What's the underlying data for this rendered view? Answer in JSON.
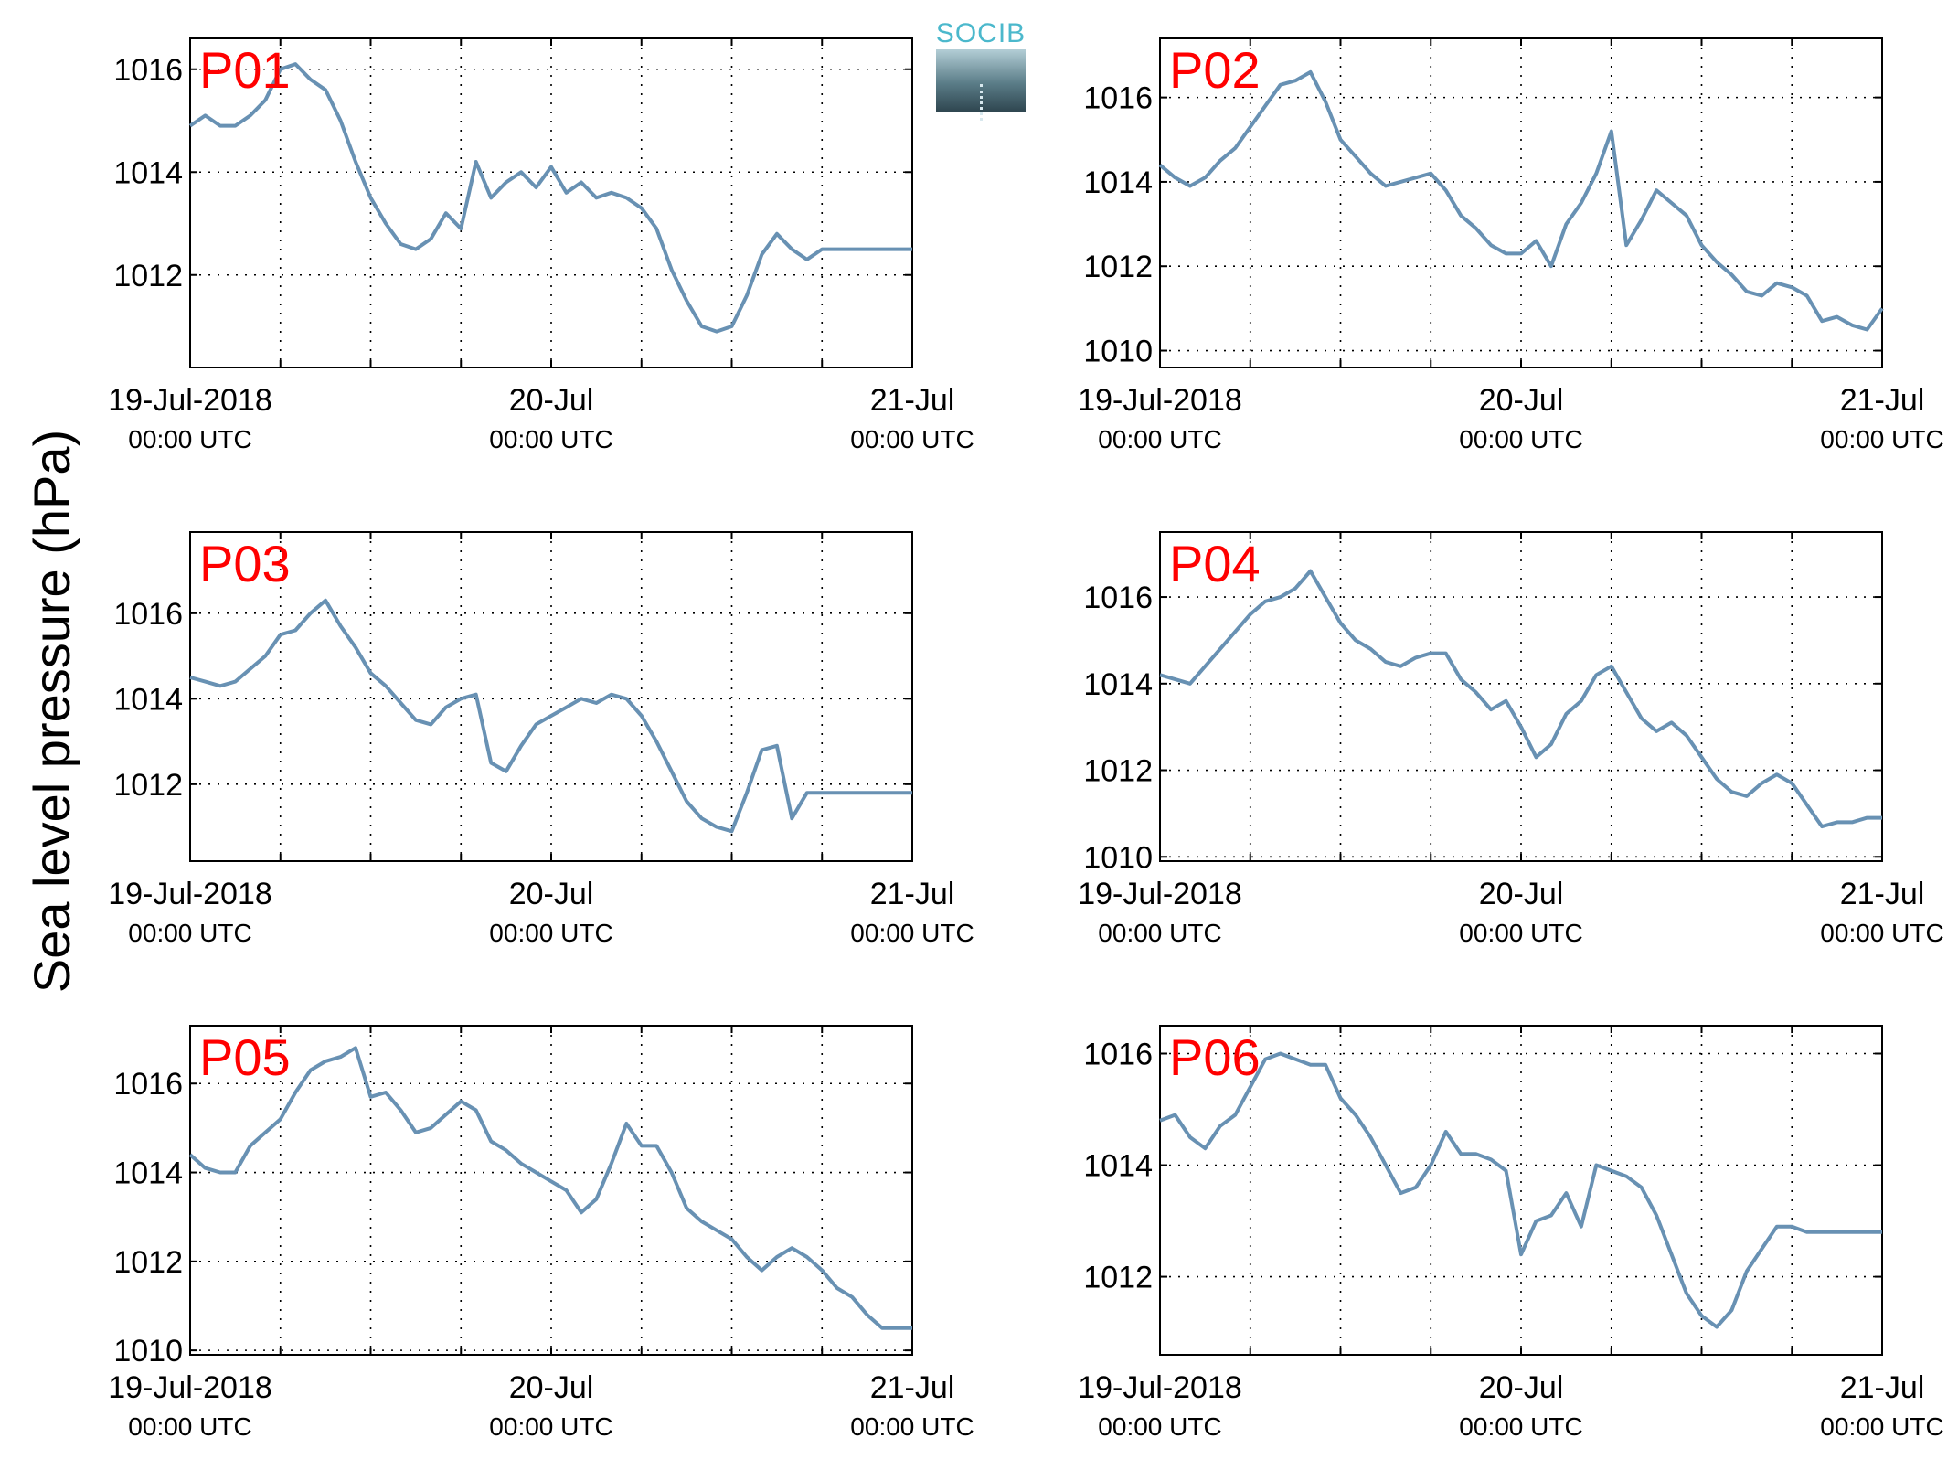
{
  "figure": {
    "ylabel": "Sea level pressure (hPa)",
    "logo_text": "SOCIB",
    "line_color": "#6891b3",
    "station_label_color": "#ff0000",
    "x_tick_labels": [
      {
        "date": "19-Jul-2018",
        "time": "00:00 UTC"
      },
      {
        "date": "20-Jul",
        "time": "00:00 UTC"
      },
      {
        "date": "21-Jul",
        "time": "00:00 UTC"
      }
    ]
  },
  "chart_data": [
    {
      "type": "line",
      "station": "P01",
      "xrange_hours": [
        0,
        48
      ],
      "ylim": [
        1010.2,
        1016.6
      ],
      "yticks": [
        1012,
        1014,
        1016
      ],
      "grid": true,
      "series": [
        {
          "x": [
            0,
            1,
            2,
            3,
            4,
            5,
            6,
            7,
            8,
            9,
            10,
            11,
            12,
            13,
            14,
            15,
            16,
            17,
            18,
            19,
            20,
            21,
            22,
            23,
            24,
            25,
            26,
            27,
            28,
            29,
            30,
            31,
            32,
            33,
            34,
            35,
            36,
            37,
            38,
            39,
            40,
            41,
            42,
            43,
            44,
            45,
            46,
            47,
            48
          ],
          "y": [
            1014.9,
            1015.1,
            1014.9,
            1014.9,
            1015.1,
            1015.4,
            1016.0,
            1016.1,
            1015.8,
            1015.6,
            1015.0,
            1014.2,
            1013.5,
            1013.0,
            1012.6,
            1012.5,
            1012.7,
            1013.2,
            1012.9,
            1014.2,
            1013.5,
            1013.8,
            1014.0,
            1013.7,
            1014.1,
            1013.6,
            1013.8,
            1013.5,
            1013.6,
            1013.5,
            1013.3,
            1012.9,
            1012.1,
            1011.5,
            1011.0,
            1010.9,
            1011.0,
            1011.6,
            1012.4,
            1012.8,
            1012.5,
            1012.3,
            1012.5,
            1012.5,
            1012.5,
            1012.5,
            1012.5,
            1012.5,
            1012.5
          ]
        }
      ]
    },
    {
      "type": "line",
      "station": "P02",
      "xrange_hours": [
        0,
        48
      ],
      "ylim": [
        1009.6,
        1017.4
      ],
      "yticks": [
        1010,
        1012,
        1014,
        1016
      ],
      "grid": true,
      "series": [
        {
          "x": [
            0,
            1,
            2,
            3,
            4,
            5,
            6,
            7,
            8,
            9,
            10,
            11,
            12,
            13,
            14,
            15,
            16,
            17,
            18,
            19,
            20,
            21,
            22,
            23,
            24,
            25,
            26,
            27,
            28,
            29,
            30,
            31,
            32,
            33,
            34,
            35,
            36,
            37,
            38,
            39,
            40,
            41,
            42,
            43,
            44,
            45,
            46,
            47,
            48
          ],
          "y": [
            1014.4,
            1014.1,
            1013.9,
            1014.1,
            1014.5,
            1014.8,
            1015.3,
            1015.8,
            1016.3,
            1016.4,
            1016.6,
            1015.9,
            1015.0,
            1014.6,
            1014.2,
            1013.9,
            1014.0,
            1014.1,
            1014.2,
            1013.8,
            1013.2,
            1012.9,
            1012.5,
            1012.3,
            1012.3,
            1012.6,
            1012.0,
            1013.0,
            1013.5,
            1014.2,
            1015.2,
            1012.5,
            1013.1,
            1013.8,
            1013.5,
            1013.2,
            1012.5,
            1012.1,
            1011.8,
            1011.4,
            1011.3,
            1011.6,
            1011.5,
            1011.3,
            1010.7,
            1010.8,
            1010.6,
            1010.5,
            1011.0
          ]
        }
      ]
    },
    {
      "type": "line",
      "station": "P03",
      "xrange_hours": [
        0,
        48
      ],
      "ylim": [
        1010.2,
        1017.9
      ],
      "yticks": [
        1012,
        1014,
        1016
      ],
      "grid": true,
      "series": [
        {
          "x": [
            0,
            1,
            2,
            3,
            4,
            5,
            6,
            7,
            8,
            9,
            10,
            11,
            12,
            13,
            14,
            15,
            16,
            17,
            18,
            19,
            20,
            21,
            22,
            23,
            24,
            25,
            26,
            27,
            28,
            29,
            30,
            31,
            32,
            33,
            34,
            35,
            36,
            37,
            38,
            39,
            40,
            41,
            42,
            43,
            44,
            45,
            46,
            47,
            48
          ],
          "y": [
            1014.5,
            1014.4,
            1014.3,
            1014.4,
            1014.7,
            1015.0,
            1015.5,
            1015.6,
            1016.0,
            1016.3,
            1015.7,
            1015.2,
            1014.6,
            1014.3,
            1013.9,
            1013.5,
            1013.4,
            1013.8,
            1014.0,
            1014.1,
            1012.5,
            1012.3,
            1012.9,
            1013.4,
            1013.6,
            1013.8,
            1014.0,
            1013.9,
            1014.1,
            1014.0,
            1013.6,
            1013.0,
            1012.3,
            1011.6,
            1011.2,
            1011.0,
            1010.9,
            1011.8,
            1012.8,
            1012.9,
            1011.2,
            1011.8,
            1011.8,
            1011.8,
            1011.8,
            1011.8,
            1011.8,
            1011.8,
            1011.8
          ]
        }
      ]
    },
    {
      "type": "line",
      "station": "P04",
      "xrange_hours": [
        0,
        48
      ],
      "ylim": [
        1009.9,
        1017.5
      ],
      "yticks": [
        1010,
        1012,
        1014,
        1016
      ],
      "grid": true,
      "series": [
        {
          "x": [
            0,
            1,
            2,
            3,
            4,
            5,
            6,
            7,
            8,
            9,
            10,
            11,
            12,
            13,
            14,
            15,
            16,
            17,
            18,
            19,
            20,
            21,
            22,
            23,
            24,
            25,
            26,
            27,
            28,
            29,
            30,
            31,
            32,
            33,
            34,
            35,
            36,
            37,
            38,
            39,
            40,
            41,
            42,
            43,
            44,
            45,
            46,
            47,
            48
          ],
          "y": [
            1014.2,
            1014.1,
            1014.0,
            1014.4,
            1014.8,
            1015.2,
            1015.6,
            1015.9,
            1016.0,
            1016.2,
            1016.6,
            1016.0,
            1015.4,
            1015.0,
            1014.8,
            1014.5,
            1014.4,
            1014.6,
            1014.7,
            1014.7,
            1014.1,
            1013.8,
            1013.4,
            1013.6,
            1013.0,
            1012.3,
            1012.6,
            1013.3,
            1013.6,
            1014.2,
            1014.4,
            1013.8,
            1013.2,
            1012.9,
            1013.1,
            1012.8,
            1012.3,
            1011.8,
            1011.5,
            1011.4,
            1011.7,
            1011.9,
            1011.7,
            1011.2,
            1010.7,
            1010.8,
            1010.8,
            1010.9,
            1010.9
          ]
        }
      ]
    },
    {
      "type": "line",
      "station": "P05",
      "xrange_hours": [
        0,
        48
      ],
      "ylim": [
        1009.9,
        1017.3
      ],
      "yticks": [
        1010,
        1012,
        1014,
        1016
      ],
      "grid": true,
      "series": [
        {
          "x": [
            0,
            1,
            2,
            3,
            4,
            5,
            6,
            7,
            8,
            9,
            10,
            11,
            12,
            13,
            14,
            15,
            16,
            17,
            18,
            19,
            20,
            21,
            22,
            23,
            24,
            25,
            26,
            27,
            28,
            29,
            30,
            31,
            32,
            33,
            34,
            35,
            36,
            37,
            38,
            39,
            40,
            41,
            42,
            43,
            44,
            45,
            46,
            47,
            48
          ],
          "y": [
            1014.4,
            1014.1,
            1014.0,
            1014.0,
            1014.6,
            1014.9,
            1015.2,
            1015.8,
            1016.3,
            1016.5,
            1016.6,
            1016.8,
            1015.7,
            1015.8,
            1015.4,
            1014.9,
            1015.0,
            1015.3,
            1015.6,
            1015.4,
            1014.7,
            1014.5,
            1014.2,
            1014.0,
            1013.8,
            1013.6,
            1013.1,
            1013.4,
            1014.2,
            1015.1,
            1014.6,
            1014.6,
            1014.0,
            1013.2,
            1012.9,
            1012.7,
            1012.5,
            1012.1,
            1011.8,
            1012.1,
            1012.3,
            1012.1,
            1011.8,
            1011.4,
            1011.2,
            1010.8,
            1010.5,
            1010.5,
            1010.5
          ]
        }
      ]
    },
    {
      "type": "line",
      "station": "P06",
      "xrange_hours": [
        0,
        48
      ],
      "ylim": [
        1010.6,
        1016.5
      ],
      "yticks": [
        1012,
        1014,
        1016
      ],
      "grid": true,
      "series": [
        {
          "x": [
            0,
            1,
            2,
            3,
            4,
            5,
            6,
            7,
            8,
            9,
            10,
            11,
            12,
            13,
            14,
            15,
            16,
            17,
            18,
            19,
            20,
            21,
            22,
            23,
            24,
            25,
            26,
            27,
            28,
            29,
            30,
            31,
            32,
            33,
            34,
            35,
            36,
            37,
            38,
            39,
            40,
            41,
            42,
            43,
            44,
            45,
            46,
            47,
            48
          ],
          "y": [
            1014.8,
            1014.9,
            1014.5,
            1014.3,
            1014.7,
            1014.9,
            1015.4,
            1015.9,
            1016.0,
            1015.9,
            1015.8,
            1015.8,
            1015.2,
            1014.9,
            1014.5,
            1014.0,
            1013.5,
            1013.6,
            1014.0,
            1014.6,
            1014.2,
            1014.2,
            1014.1,
            1013.9,
            1012.4,
            1013.0,
            1013.1,
            1013.5,
            1012.9,
            1014.0,
            1013.9,
            1013.8,
            1013.6,
            1013.1,
            1012.4,
            1011.7,
            1011.3,
            1011.1,
            1011.4,
            1012.1,
            1012.5,
            1012.9,
            1012.9,
            1012.8,
            1012.8,
            1012.8,
            1012.8,
            1012.8,
            1012.8
          ]
        }
      ]
    }
  ]
}
